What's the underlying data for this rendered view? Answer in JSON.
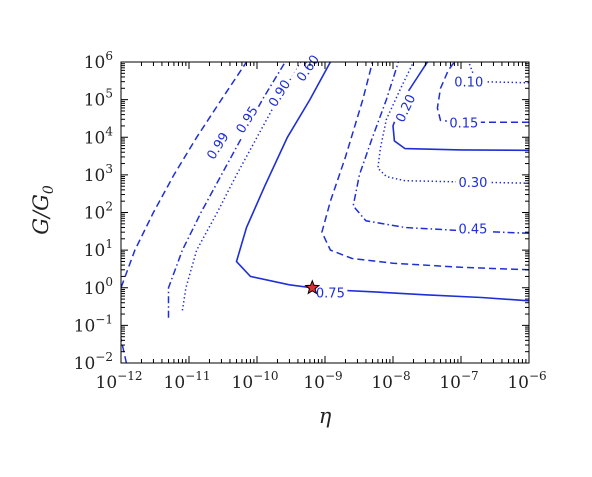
{
  "chart_data": {
    "type": "contour",
    "xlabel": "η",
    "ylabel": "G/G0",
    "x_scale": "log",
    "y_scale": "log",
    "xlim": [
      1e-12,
      1e-06
    ],
    "ylim": [
      0.01,
      1000000
    ],
    "x_ticks": [
      {
        "base": "10",
        "exp": "−12"
      },
      {
        "base": "10",
        "exp": "−11"
      },
      {
        "base": "10",
        "exp": "−10"
      },
      {
        "base": "10",
        "exp": "−9"
      },
      {
        "base": "10",
        "exp": "−8"
      },
      {
        "base": "10",
        "exp": "−7"
      },
      {
        "base": "10",
        "exp": "−6"
      }
    ],
    "y_ticks": [
      {
        "base": "10",
        "exp": "−2"
      },
      {
        "base": "10",
        "exp": "−1"
      },
      {
        "base": "10",
        "exp": "0"
      },
      {
        "base": "10",
        "exp": "1"
      },
      {
        "base": "10",
        "exp": "2"
      },
      {
        "base": "10",
        "exp": "3"
      },
      {
        "base": "10",
        "exp": "4"
      },
      {
        "base": "10",
        "exp": "5"
      },
      {
        "base": "10",
        "exp": "6"
      }
    ],
    "color": "#1f2fd6",
    "marker": {
      "type": "star",
      "x": 6.5e-10,
      "y": 1.0,
      "color": "#e03030"
    },
    "contours": [
      {
        "level": "0.99",
        "style": "dashed",
        "label": "0.99",
        "points": [
          [
            1.2e-12,
            0.01
          ],
          [
            9e-13,
            0.1
          ],
          [
            1e-12,
            1
          ],
          [
            1.6e-12,
            10
          ],
          [
            3e-12,
            100
          ],
          [
            6e-12,
            1000
          ],
          [
            1.3e-11,
            10000
          ],
          [
            3e-11,
            100000
          ],
          [
            7e-11,
            1000000
          ]
        ]
      },
      {
        "level": "0.95",
        "style": "dashdot",
        "label": "0.95",
        "points": [
          [
            5e-12,
            0.16
          ],
          [
            5e-12,
            1
          ],
          [
            8e-12,
            10
          ],
          [
            1.5e-11,
            100
          ],
          [
            3e-11,
            1000
          ],
          [
            6e-11,
            10000
          ],
          [
            1.2e-10,
            100000
          ],
          [
            2.6e-10,
            1000000
          ]
        ]
      },
      {
        "level": "0.90",
        "style": "dotted",
        "label": "0.90",
        "points": [
          [
            8e-12,
            0.25
          ],
          [
            9e-12,
            1
          ],
          [
            1.3e-11,
            10
          ],
          [
            2.6e-11,
            100
          ],
          [
            5e-11,
            1000
          ],
          [
            1e-10,
            10000
          ],
          [
            2e-10,
            100000
          ],
          [
            4.5e-10,
            1000000
          ]
        ]
      },
      {
        "level": "0.75",
        "style": "solid",
        "label": "0.75",
        "points": [
          [
            1e-06,
            0.45
          ],
          [
            2e-07,
            0.55
          ],
          [
            3e-08,
            0.65
          ],
          [
            5e-09,
            0.78
          ],
          [
            1e-09,
            0.9
          ],
          [
            3e-10,
            1.2
          ],
          [
            8e-11,
            2
          ],
          [
            5e-11,
            5
          ],
          [
            7e-11,
            40
          ],
          [
            1.3e-10,
            500
          ],
          [
            2.8e-10,
            10000
          ],
          [
            6e-10,
            100000
          ],
          [
            1.2e-09,
            1000000
          ]
        ]
      },
      {
        "level": "0.60",
        "style": "dashed",
        "label": "0.60",
        "points": [
          [
            1e-06,
            3
          ],
          [
            1e-07,
            3.5
          ],
          [
            1e-08,
            4.5
          ],
          [
            2.5e-09,
            6
          ],
          [
            1.2e-09,
            10
          ],
          [
            9e-10,
            30
          ],
          [
            1.2e-09,
            200
          ],
          [
            2e-09,
            3000
          ],
          [
            3.6e-09,
            100000
          ],
          [
            5e-09,
            1000000
          ]
        ]
      },
      {
        "level": "0.45",
        "style": "dashdot",
        "label": "0.45",
        "points": [
          [
            1e-06,
            28
          ],
          [
            1e-07,
            33
          ],
          [
            1.5e-08,
            40
          ],
          [
            4e-09,
            60
          ],
          [
            2.6e-09,
            150
          ],
          [
            3.2e-09,
            1000
          ],
          [
            5e-09,
            10000
          ],
          [
            8e-09,
            100000
          ],
          [
            1.2e-08,
            1000000
          ]
        ]
      },
      {
        "level": "0.30",
        "style": "dotted",
        "label": "0.30",
        "points": [
          [
            1e-06,
            600
          ],
          [
            1e-07,
            650
          ],
          [
            1.5e-08,
            700
          ],
          [
            8e-09,
            900
          ],
          [
            6e-09,
            1500
          ],
          [
            6.5e-09,
            5000
          ],
          [
            8e-09,
            30000
          ],
          [
            1.3e-08,
            200000
          ],
          [
            2e-08,
            1000000
          ]
        ]
      },
      {
        "level": "0.20",
        "style": "solid",
        "label": "0.20",
        "points": [
          [
            1e-06,
            4500
          ],
          [
            1e-07,
            4600
          ],
          [
            1.5e-08,
            5000
          ],
          [
            1.05e-08,
            8000
          ],
          [
            1e-08,
            20000
          ],
          [
            1.4e-08,
            100000
          ],
          [
            2.3e-08,
            400000
          ],
          [
            3.2e-08,
            1000000
          ]
        ]
      },
      {
        "level": "0.15",
        "style": "dashed",
        "label": "0.15",
        "points": [
          [
            1e-06,
            25000
          ],
          [
            1e-07,
            25000
          ],
          [
            5e-08,
            28000
          ],
          [
            4.5e-08,
            60000
          ],
          [
            5e-08,
            200000
          ],
          [
            6.5e-08,
            600000
          ],
          [
            8e-08,
            1000000
          ]
        ]
      },
      {
        "level": "0.10",
        "style": "dotted",
        "label": "0.10",
        "points": [
          [
            1e-06,
            280000
          ],
          [
            2e-07,
            300000
          ],
          [
            1.5e-07,
            500000
          ],
          [
            1.3e-07,
            1000000
          ]
        ]
      }
    ]
  }
}
